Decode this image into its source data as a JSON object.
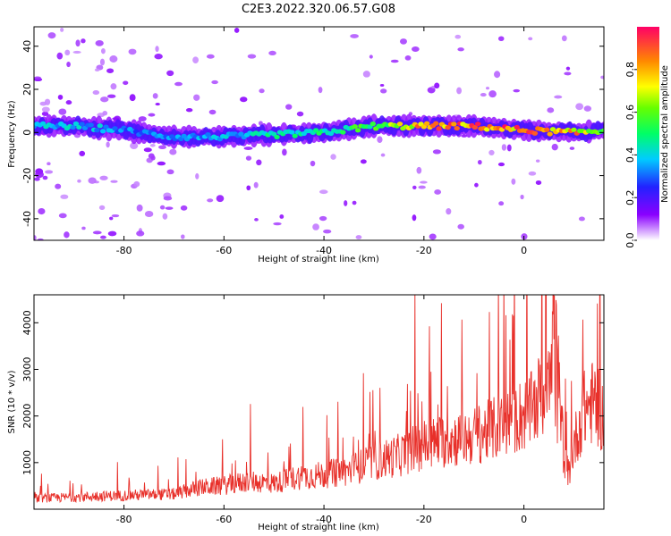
{
  "title": "C2E3.2022.320.06.57.G08",
  "chart_data": [
    {
      "type": "heatmap",
      "xlabel": "Height of straight line (km)",
      "ylabel": "Frequency (Hz)",
      "xlim": [
        -98,
        16
      ],
      "ylim": [
        -50,
        49
      ],
      "xticks": [
        -80,
        -60,
        -40,
        -20,
        0
      ],
      "yticks": [
        -40,
        -20,
        0,
        20,
        40
      ],
      "colorbar": {
        "label": "Normalized spectral amplitude",
        "range": [
          0.0,
          1.0
        ],
        "ticks": [
          0.0,
          0.2,
          0.4,
          0.6,
          0.8
        ]
      },
      "ridge": {
        "x": [
          -98,
          -90,
          -80,
          -70,
          -60,
          -50,
          -40,
          -30,
          -20,
          -10,
          0,
          10,
          16
        ],
        "frequency": [
          3,
          3,
          1,
          -2,
          -2,
          -1,
          0,
          3,
          3,
          3,
          1,
          0,
          1
        ],
        "peak_amplitude": [
          0.4,
          0.45,
          0.35,
          0.35,
          0.4,
          0.5,
          0.55,
          0.6,
          0.9,
          0.95,
          0.95,
          0.9,
          0.6
        ]
      }
    },
    {
      "type": "line",
      "xlabel": "Height of straight line (km)",
      "ylabel": "SNR (10 * v/v)",
      "xlim": [
        -98,
        16
      ],
      "ylim": [
        0,
        4600
      ],
      "xticks": [
        -80,
        -60,
        -40,
        -20,
        0
      ],
      "yticks": [
        1000,
        2000,
        3000,
        4000
      ],
      "series": [
        {
          "color": "#e8302a",
          "x": [
            -98,
            -90,
            -80,
            -70,
            -65,
            -60,
            -55,
            -50,
            -45,
            -40,
            -35,
            -30,
            -25,
            -20,
            -15,
            -10,
            -5,
            0,
            2,
            4,
            5,
            6,
            6.5,
            7,
            8,
            9,
            10,
            12,
            14,
            16
          ],
          "values": [
            250,
            280,
            320,
            350,
            500,
            550,
            650,
            600,
            750,
            800,
            900,
            1100,
            1250,
            1500,
            1600,
            1700,
            1900,
            2200,
            2300,
            2700,
            3600,
            4300,
            4600,
            3200,
            1200,
            800,
            1500,
            2300,
            2500,
            2100
          ]
        }
      ]
    }
  ]
}
